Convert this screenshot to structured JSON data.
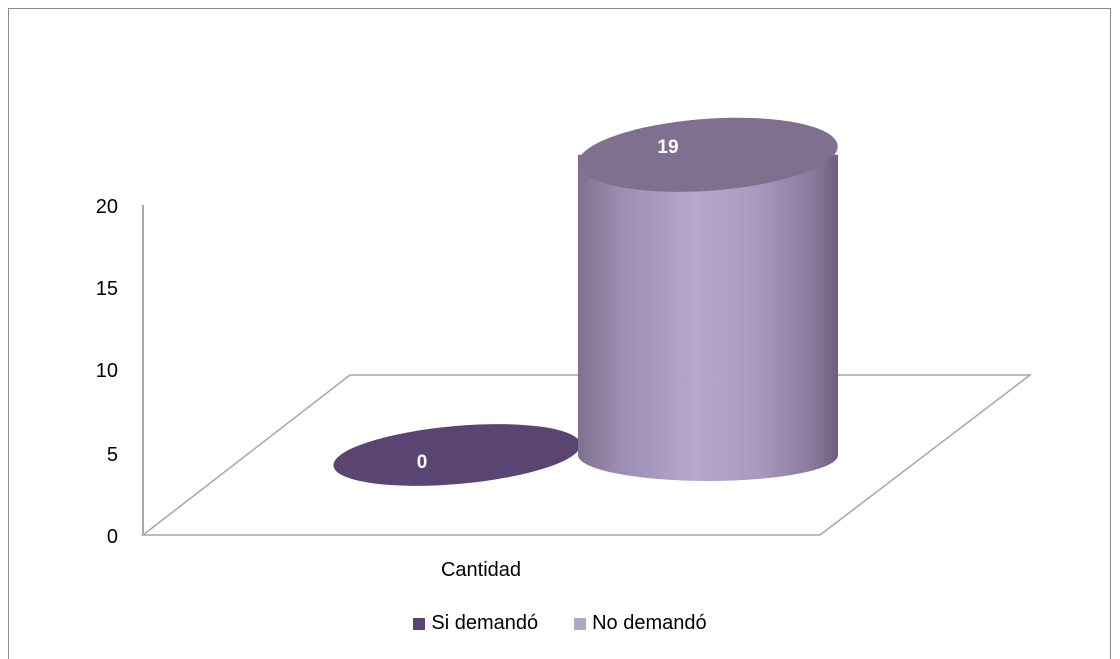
{
  "chart_data": {
    "type": "bar",
    "style": "3d-cylinder",
    "categories": [
      "Cantidad"
    ],
    "series": [
      {
        "name": "Si demandó",
        "values": [
          0
        ],
        "color": "#5a4472"
      },
      {
        "name": "No demandó",
        "values": [
          19
        ],
        "color": "#b3a5c8"
      }
    ],
    "data_labels": [
      "0",
      "19"
    ],
    "ylim": [
      0,
      20
    ],
    "yticks": [
      "0",
      "5",
      "10",
      "15",
      "20"
    ],
    "legend_position": "bottom",
    "grid": false
  }
}
